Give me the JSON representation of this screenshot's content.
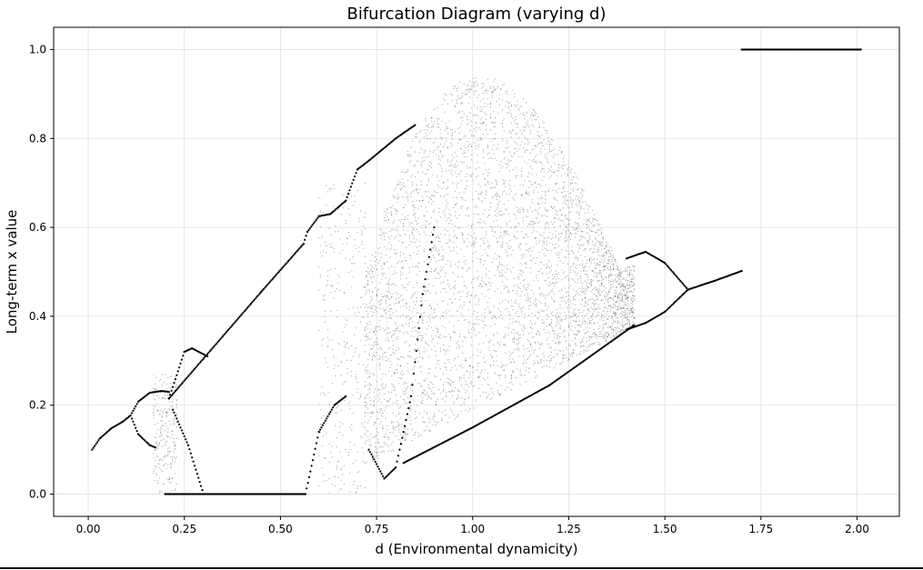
{
  "chart_data": {
    "type": "scatter",
    "title": "Bifurcation Diagram (varying d)",
    "xlabel": "d (Environmental dynamicity)",
    "ylabel": "Long-term x value",
    "xlim": [
      -0.09,
      2.11
    ],
    "ylim": [
      -0.05,
      1.05
    ],
    "x_ticks": [
      0.0,
      0.25,
      0.5,
      0.75,
      1.0,
      1.25,
      1.5,
      1.75,
      2.0
    ],
    "x_tick_labels": [
      "0.00",
      "0.25",
      "0.50",
      "0.75",
      "1.00",
      "1.25",
      "1.50",
      "1.75",
      "2.00"
    ],
    "y_ticks": [
      0.0,
      0.2,
      0.4,
      0.6,
      0.8,
      1.0
    ],
    "y_tick_labels": [
      "0.0",
      "0.2",
      "0.4",
      "0.6",
      "0.8",
      "1.0"
    ],
    "grid": true,
    "colors": {
      "points": "#000000",
      "grid": "#e0e0e0",
      "axis": "#000000"
    },
    "series": [
      {
        "values_note_free": true,
        "segments": [
          {
            "kind": "line",
            "points": [
              [
                0.01,
                0.1
              ],
              [
                0.03,
                0.125
              ],
              [
                0.06,
                0.148
              ],
              [
                0.09,
                0.163
              ],
              [
                0.11,
                0.177
              ]
            ]
          },
          {
            "kind": "line",
            "points": [
              [
                0.11,
                0.177
              ],
              [
                0.13,
                0.208
              ],
              [
                0.16,
                0.228
              ],
              [
                0.19,
                0.232
              ],
              [
                0.21,
                0.23
              ]
            ]
          },
          {
            "kind": "line",
            "points": [
              [
                0.11,
                0.177
              ],
              [
                0.13,
                0.135
              ],
              [
                0.16,
                0.11
              ],
              [
                0.175,
                0.105
              ]
            ]
          },
          {
            "kind": "line",
            "points": [
              [
                0.21,
                0.215
              ],
              [
                0.3,
                0.305
              ],
              [
                0.45,
                0.455
              ],
              [
                0.56,
                0.563
              ]
            ]
          },
          {
            "kind": "line",
            "points": [
              [
                0.21,
                0.215
              ],
              [
                0.25,
                0.32
              ],
              [
                0.27,
                0.328
              ],
              [
                0.31,
                0.31
              ]
            ]
          },
          {
            "kind": "line",
            "points": [
              [
                0.2,
                0.0
              ],
              [
                0.565,
                0.0
              ]
            ]
          },
          {
            "kind": "line",
            "points": [
              [
                0.22,
                0.19
              ],
              [
                0.26,
                0.11
              ],
              [
                0.3,
                0.0
              ]
            ]
          },
          {
            "kind": "line",
            "points": [
              [
                0.56,
                0.563
              ],
              [
                0.57,
                0.59
              ],
              [
                0.6,
                0.625
              ],
              [
                0.63,
                0.63
              ],
              [
                0.67,
                0.66
              ],
              [
                0.7,
                0.73
              ],
              [
                0.73,
                0.75
              ],
              [
                0.8,
                0.8
              ],
              [
                0.85,
                0.83
              ]
            ]
          },
          {
            "kind": "line",
            "points": [
              [
                0.565,
                0.0
              ],
              [
                0.6,
                0.14
              ],
              [
                0.64,
                0.2
              ],
              [
                0.67,
                0.22
              ]
            ]
          },
          {
            "kind": "line",
            "points": [
              [
                0.73,
                0.1
              ],
              [
                0.77,
                0.035
              ],
              [
                0.8,
                0.06
              ],
              [
                0.84,
                0.22
              ],
              [
                0.87,
                0.45
              ],
              [
                0.9,
                0.6
              ]
            ]
          },
          {
            "kind": "line",
            "points": [
              [
                0.82,
                0.07
              ],
              [
                1.0,
                0.15
              ],
              [
                1.2,
                0.245
              ],
              [
                1.42,
                0.38
              ]
            ]
          },
          {
            "kind": "line",
            "points": [
              [
                1.4,
                0.53
              ],
              [
                1.45,
                0.545
              ],
              [
                1.5,
                0.52
              ],
              [
                1.56,
                0.46
              ]
            ]
          },
          {
            "kind": "line",
            "points": [
              [
                1.4,
                0.37
              ],
              [
                1.45,
                0.385
              ],
              [
                1.5,
                0.41
              ],
              [
                1.56,
                0.46
              ]
            ]
          },
          {
            "kind": "line",
            "points": [
              [
                1.56,
                0.46
              ],
              [
                1.63,
                0.48
              ],
              [
                1.7,
                0.502
              ]
            ]
          },
          {
            "kind": "line",
            "points": [
              [
                1.7,
                1.0
              ],
              [
                2.01,
                1.0
              ]
            ]
          }
        ],
        "envelopes": [
          {
            "d_start": 0.17,
            "d_end": 0.23,
            "y_low": 0.0,
            "y_high": 0.27,
            "density": 0.5
          },
          {
            "d_start": 0.6,
            "d_end": 0.72,
            "y_low": 0.0,
            "y_high": 0.7,
            "density": 0.35
          },
          {
            "d_start": 0.72,
            "d_end": 1.42,
            "y_low_start": 0.065,
            "y_low_end": 0.375,
            "y_peak": 0.94,
            "peak_d": 1.02,
            "density": 0.9
          }
        ]
      }
    ]
  }
}
